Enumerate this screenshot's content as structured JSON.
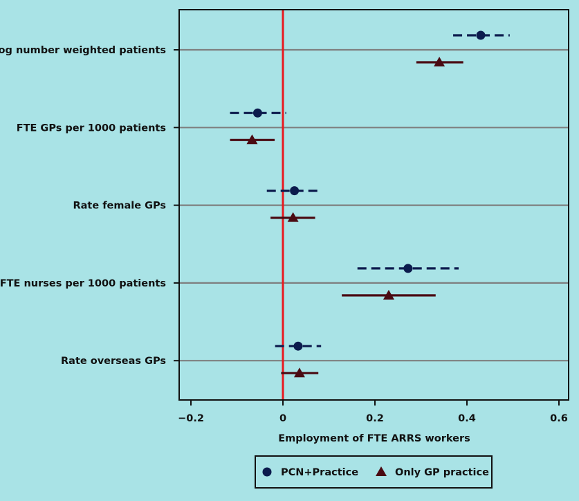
{
  "chart_data": {
    "type": "scatter",
    "subtype": "coefficient-plot",
    "xlabel": "Employment of FTE ARRS workers",
    "xlim": [
      -0.2,
      0.6
    ],
    "xticks": [
      -0.2,
      0,
      0.2,
      0.4,
      0.6
    ],
    "xtick_labels": [
      "−0.2",
      "0",
      "0.2",
      "0.4",
      "0.6"
    ],
    "reference_line_x": 0,
    "categories": [
      "Log number weighted patients",
      "FTE GPs per 1000 patients",
      "Rate female GPs",
      "FTE nurses per 1000 patients",
      "Rate overseas GPs"
    ],
    "series": [
      {
        "name": "PCN+Practice",
        "marker": "circle",
        "line_style": "dashed",
        "color": "#0c1b4d",
        "values": [
          0.43,
          -0.055,
          0.025,
          0.272,
          0.033
        ],
        "ci_low": [
          0.37,
          -0.115,
          -0.035,
          0.162,
          -0.017
        ],
        "ci_high": [
          0.493,
          0.007,
          0.085,
          0.382,
          0.083
        ]
      },
      {
        "name": "Only GP practice",
        "marker": "triangle",
        "line_style": "solid",
        "color": "#4a0a12",
        "values": [
          0.34,
          -0.067,
          0.022,
          0.23,
          0.036
        ],
        "ci_low": [
          0.29,
          -0.115,
          -0.027,
          0.128,
          -0.004
        ],
        "ci_high": [
          0.392,
          -0.018,
          0.07,
          0.332,
          0.077
        ]
      }
    ],
    "legend_position": "bottom-center"
  },
  "colors": {
    "background": "#a9e3e6",
    "reference_line": "#e8191f",
    "row_line": "#7f7f7f",
    "axis": "#111111"
  }
}
